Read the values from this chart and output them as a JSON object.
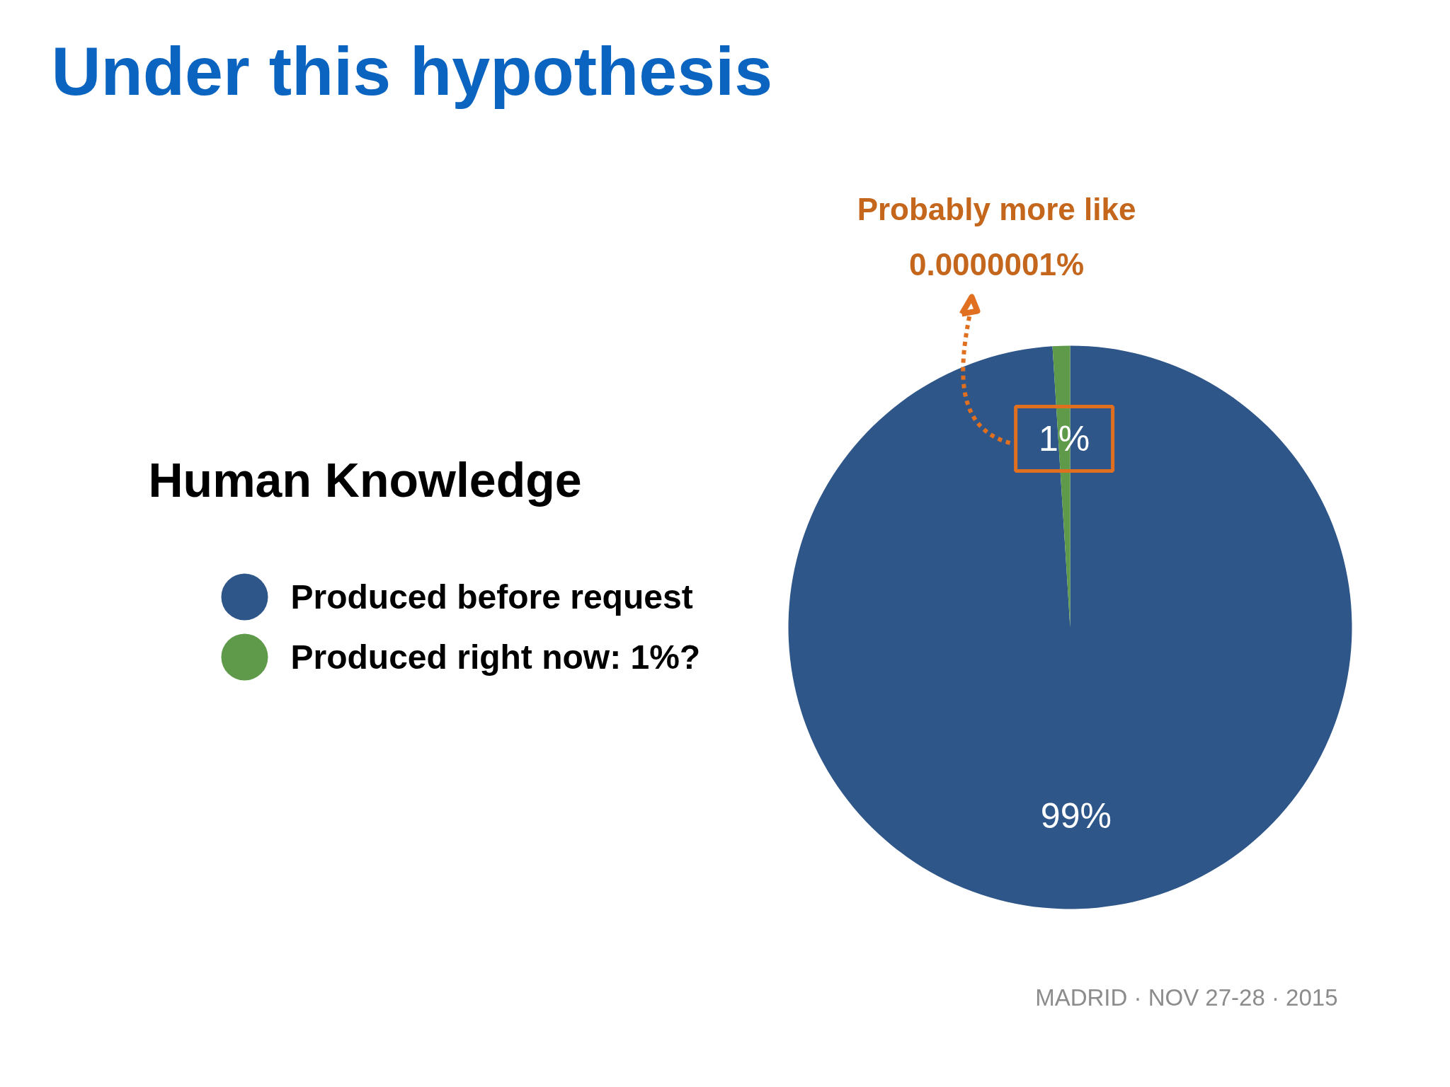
{
  "chart_data": {
    "type": "pie",
    "title": "Under this hypothesis",
    "legend_title": "Human Knowledge",
    "categories": [
      "Produced before request",
      "Produced right now: 1%?"
    ],
    "values": [
      99,
      1
    ],
    "colors": [
      "#2f5689",
      "#5e9a49"
    ],
    "value_labels": [
      "99%",
      "1%"
    ],
    "legend": "left",
    "annotations": [
      "Probably more like\n0.0000001%",
      "MADRID · NOV 27-28 · 2015"
    ]
  }
}
